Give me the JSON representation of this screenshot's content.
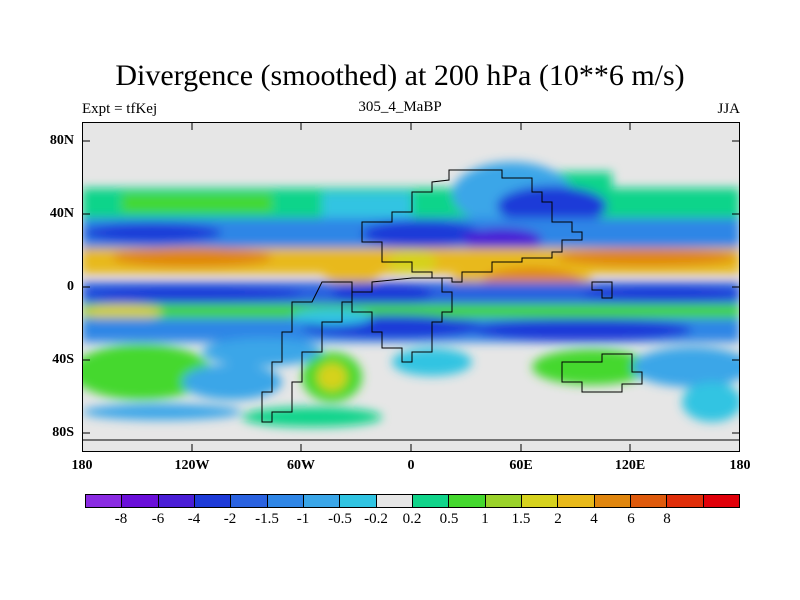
{
  "title": "Divergence (smoothed) at 200 hPa (10**6 m/s)",
  "expt_label": "Expt = tfKej",
  "run_label": "305_4_MaBP",
  "season_label": "JJA",
  "lat_ticks": [
    "80N",
    "40N",
    "0",
    "40S",
    "80S"
  ],
  "lon_ticks": [
    "180",
    "120W",
    "60W",
    "0",
    "60E",
    "120E",
    "180"
  ],
  "colorbar": {
    "colors": [
      "#8a2be2",
      "#6a0fd9",
      "#4a1ed6",
      "#1e3bd8",
      "#2a62e0",
      "#2f86e6",
      "#3aa6e8",
      "#30c4e2",
      "#e6e6e6",
      "#10d48a",
      "#44d82e",
      "#9ad22a",
      "#d6d21e",
      "#e8b91a",
      "#e0860e",
      "#de5a0c",
      "#e02e0a",
      "#e0000a"
    ],
    "labels": [
      "-8",
      "-6",
      "-4",
      "-2",
      "-1.5",
      "-1",
      "-0.5",
      "-0.2",
      "0.2",
      "0.5",
      "1",
      "1.5",
      "2",
      "4",
      "6",
      "8"
    ]
  }
}
